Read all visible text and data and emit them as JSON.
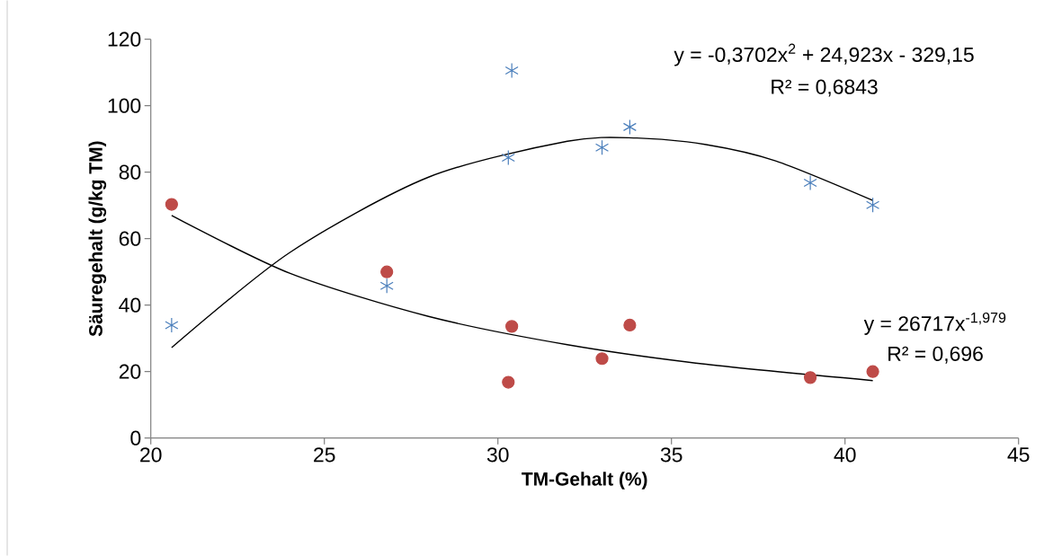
{
  "chart_data": {
    "type": "scatter",
    "xlabel": "TM-Gehalt (%)",
    "ylabel": "Säuregehalt (g/kg TM)",
    "xlim": [
      20,
      45
    ],
    "ylim": [
      0,
      120
    ],
    "xticks": [
      20,
      25,
      30,
      35,
      40,
      45
    ],
    "yticks": [
      0,
      20,
      40,
      60,
      80,
      100,
      120
    ],
    "grid": false,
    "series": [
      {
        "marker": "cross",
        "color": "#4a7ebb",
        "x": [
          20.6,
          26.8,
          30.3,
          30.4,
          33.0,
          33.8,
          39.0,
          40.8
        ],
        "values": [
          34.0,
          45.8,
          84.4,
          110.6,
          87.4,
          93.6,
          76.8,
          70.1
        ]
      },
      {
        "marker": "circle",
        "color": "#be4b48",
        "x": [
          20.6,
          26.8,
          30.4,
          30.3,
          33.0,
          33.8,
          39.0,
          40.8
        ],
        "values": [
          70.3,
          50.0,
          33.6,
          16.8,
          23.9,
          34.0,
          18.2,
          20.0
        ]
      },
      {
        "type": "line",
        "marker": "none",
        "color": "#000000",
        "x": [
          20.6,
          24,
          28,
          32,
          34,
          36,
          38,
          40.8
        ],
        "values": [
          27.2,
          55.8,
          78.5,
          89.3,
          90.3,
          88.3,
          83.4,
          71.5
        ]
      },
      {
        "type": "line",
        "marker": "none",
        "color": "#000000",
        "x": [
          20.6,
          24,
          28,
          32,
          36,
          40.8
        ],
        "values": [
          67.0,
          49.6,
          36.6,
          28.1,
          22.2,
          17.3
        ]
      }
    ],
    "annotations": [
      "y = -0,3702x$^{2}$ + 24,923x - 329,15",
      "R² = 0,6843",
      "y = 26717x$^{-1,979}$",
      "R² = 0,696"
    ]
  }
}
